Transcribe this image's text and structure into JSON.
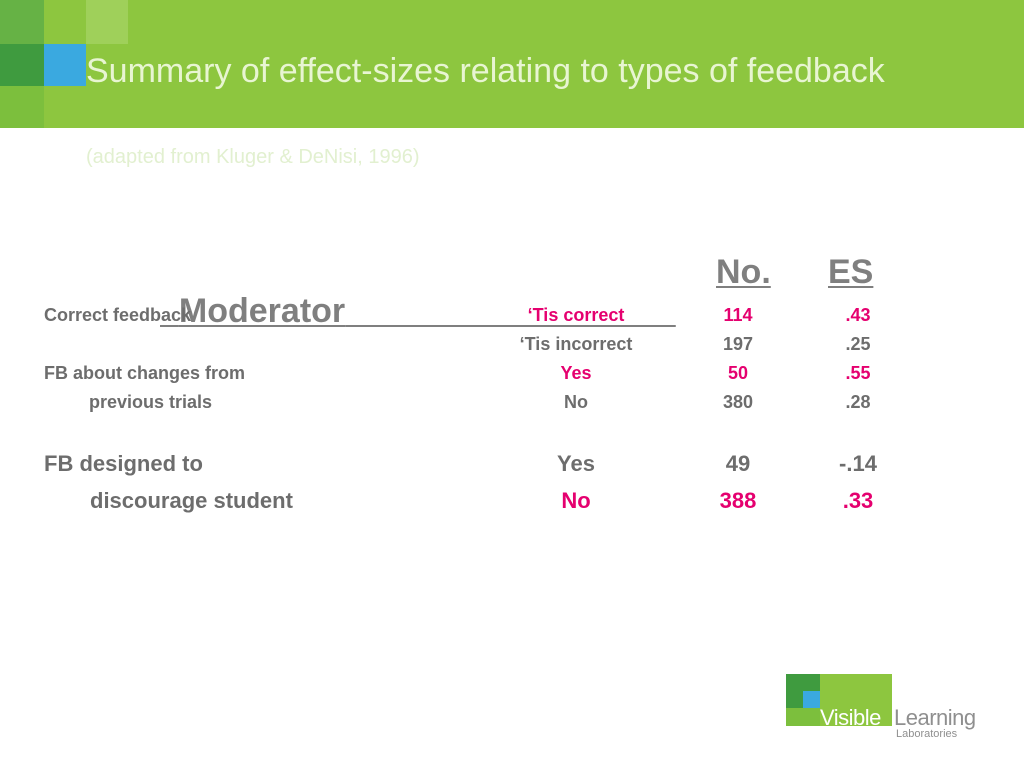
{
  "slide": {
    "title": "Summary of effect-sizes relating to types of feedback",
    "subtitle": "(adapted from Kluger & DeNisi, 1996)"
  },
  "table": {
    "headers": {
      "moderator": "Moderator",
      "no": "No.",
      "es": "ES"
    },
    "rows": [
      {
        "moderator": "Correct feedback",
        "condition": "‘Tis correct",
        "no": "114",
        "es": ".43"
      },
      {
        "moderator": "",
        "condition": "‘Tis incorrect",
        "no": "197",
        "es": ".25"
      },
      {
        "moderator": "FB about changes from",
        "condition": "Yes",
        "no": "50",
        "es": ".55"
      },
      {
        "moderator": "previous trials",
        "condition": "No",
        "no": "380",
        "es": ".28"
      },
      {
        "moderator": "FB designed to",
        "condition": "Yes",
        "no": "49",
        "es": "-.14"
      },
      {
        "moderator": "discourage student",
        "condition": "No",
        "no": "388",
        "es": ".33"
      }
    ]
  },
  "logo": {
    "word1": "Visible",
    "word2": "Learning",
    "word3": "Laboratories"
  },
  "colors": {
    "header_green": "#8dc63f",
    "dark_green": "#3f9b3f",
    "light_blue": "#3aa9e0",
    "highlight_pink": "#e5006f",
    "text_grey": "#6d6d6d"
  }
}
